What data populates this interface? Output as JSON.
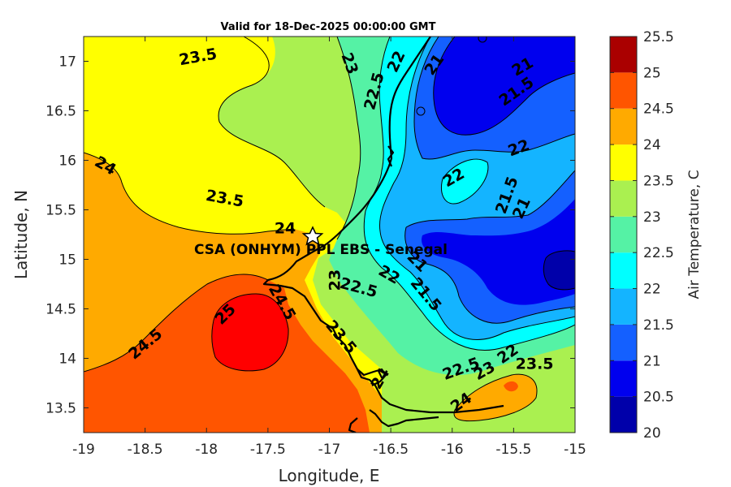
{
  "title": "Valid for 18-Dec-2025 00:00:00 GMT",
  "site_label": "CSA (ONHYM) PPL EBS  - Senegal",
  "colors": {
    "band_20_0": "#0000aa",
    "band_20_5": "#0000ee",
    "band_21_0": "#1460ff",
    "band_21_5": "#14b4ff",
    "band_22_0": "#00ffff",
    "band_22_5": "#55f2a5",
    "band_23_0": "#aaf050",
    "band_23_5": "#ffff00",
    "band_24_0": "#ffaa00",
    "band_24_5": "#ff5500",
    "band_25_0": "#ff0000",
    "band_25_5": "#aa0000"
  },
  "chart_data": {
    "type": "filled-contour-map",
    "title": "Valid for 18-Dec-2025 00:00:00 GMT",
    "xlabel": "Longitude, E",
    "ylabel": "Latitude, N",
    "xlim": [
      -19,
      -15
    ],
    "ylim": [
      13.25,
      17.25
    ],
    "xticks": [
      -19,
      -18.5,
      -18,
      -17.5,
      -17,
      -16.5,
      -16,
      -15.5,
      -15
    ],
    "xtick_labels": [
      "-19",
      "-18.5",
      "-18",
      "-17.5",
      "-17",
      "-16.5",
      "-16",
      "-15.5",
      "-15"
    ],
    "yticks": [
      13.5,
      14,
      14.5,
      15,
      15.5,
      16,
      16.5,
      17
    ],
    "ytick_labels": [
      "13.5",
      "14",
      "14.5",
      "15",
      "15.5",
      "16",
      "16.5",
      "17"
    ],
    "colorbar": {
      "label": "Air Temperature, C",
      "levels": [
        20,
        20.5,
        21,
        21.5,
        22,
        22.5,
        23,
        23.5,
        24,
        24.5,
        25,
        25.5
      ],
      "tick_labels": [
        "20",
        "20.5",
        "21",
        "21.5",
        "22",
        "22.5",
        "23",
        "23.5",
        "24",
        "24.5",
        "25",
        "25.5"
      ]
    },
    "site": {
      "name": "CSA (ONHYM) PPL EBS  - Senegal",
      "lon": -17.12,
      "lat": 15.23
    },
    "contour_labels": [
      {
        "text": "23.5",
        "lon": -18.07,
        "lat": 17.05
      },
      {
        "text": "23",
        "lon": -16.83,
        "lat": 16.98
      },
      {
        "text": "22",
        "lon": -16.46,
        "lat": 17.0
      },
      {
        "text": "21",
        "lon": -16.15,
        "lat": 16.97
      },
      {
        "text": "22.5",
        "lon": -16.64,
        "lat": 16.7
      },
      {
        "text": "21",
        "lon": -15.43,
        "lat": 16.95
      },
      {
        "text": "21.5",
        "lon": -15.48,
        "lat": 16.7
      },
      {
        "text": "22",
        "lon": -15.46,
        "lat": 16.13
      },
      {
        "text": "24",
        "lon": -18.82,
        "lat": 15.95
      },
      {
        "text": "23.5",
        "lon": -17.85,
        "lat": 15.62
      },
      {
        "text": "22",
        "lon": -15.99,
        "lat": 15.83
      },
      {
        "text": "21.5",
        "lon": -15.56,
        "lat": 15.65
      },
      {
        "text": "21",
        "lon": -15.44,
        "lat": 15.52
      },
      {
        "text": "24",
        "lon": -17.36,
        "lat": 15.32
      },
      {
        "text": "23",
        "lon": -16.96,
        "lat": 14.79
      },
      {
        "text": "22.5",
        "lon": -16.76,
        "lat": 14.72
      },
      {
        "text": "22",
        "lon": -16.51,
        "lat": 14.85
      },
      {
        "text": "21",
        "lon": -16.28,
        "lat": 14.98
      },
      {
        "text": "21.5",
        "lon": -16.21,
        "lat": 14.65
      },
      {
        "text": "24.5",
        "lon": -17.38,
        "lat": 14.57
      },
      {
        "text": "25",
        "lon": -17.85,
        "lat": 14.45
      },
      {
        "text": "24.5",
        "lon": -18.5,
        "lat": 14.15
      },
      {
        "text": "23.5",
        "lon": -16.9,
        "lat": 14.22
      },
      {
        "text": "22.5",
        "lon": -15.93,
        "lat": 13.9
      },
      {
        "text": "23",
        "lon": -15.74,
        "lat": 13.88
      },
      {
        "text": "22",
        "lon": -15.55,
        "lat": 14.05
      },
      {
        "text": "23.5",
        "lon": -15.33,
        "lat": 13.95
      },
      {
        "text": "24",
        "lon": -16.59,
        "lat": 13.8
      },
      {
        "text": "24",
        "lon": -15.93,
        "lat": 13.56
      }
    ]
  }
}
